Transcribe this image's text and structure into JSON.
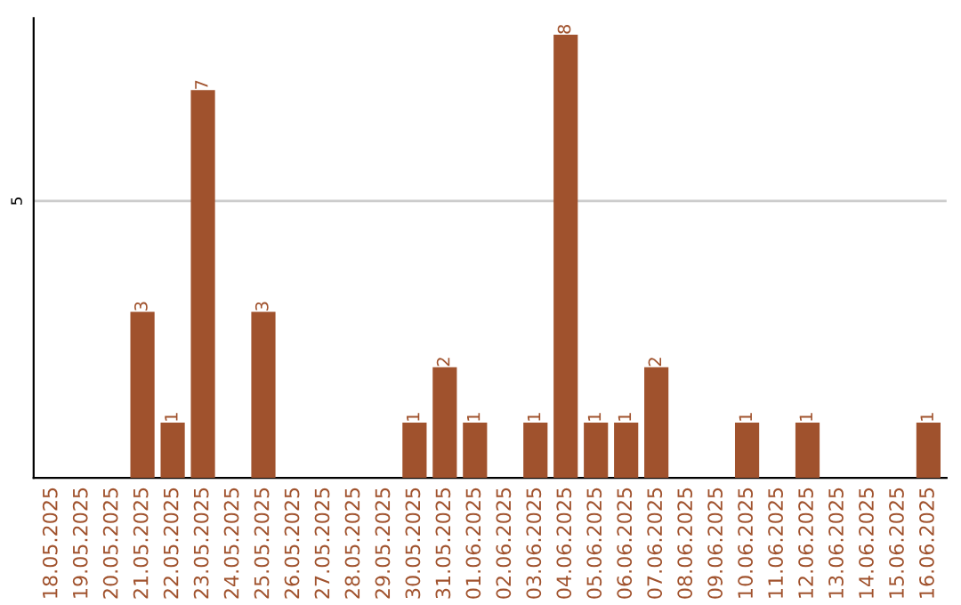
{
  "chart_data": {
    "type": "bar",
    "categories": [
      "18.05.2025",
      "19.05.2025",
      "20.05.2025",
      "21.05.2025",
      "22.05.2025",
      "23.05.2025",
      "24.05.2025",
      "25.05.2025",
      "26.05.2025",
      "27.05.2025",
      "28.05.2025",
      "29.05.2025",
      "30.05.2025",
      "31.05.2025",
      "01.06.2025",
      "02.06.2025",
      "03.06.2025",
      "04.06.2025",
      "05.06.2025",
      "06.06.2025",
      "07.06.2025",
      "08.06.2025",
      "09.06.2025",
      "10.06.2025",
      "11.06.2025",
      "12.06.2025",
      "13.06.2025",
      "14.06.2025",
      "15.06.2025",
      "16.06.2025"
    ],
    "values": [
      0,
      0,
      0,
      3,
      1,
      7,
      0,
      3,
      0,
      0,
      0,
      0,
      1,
      2,
      1,
      0,
      1,
      8,
      1,
      1,
      2,
      0,
      0,
      1,
      0,
      1,
      0,
      0,
      0,
      1
    ],
    "value_labels": [
      null,
      null,
      null,
      "3",
      "1",
      "7",
      null,
      "3",
      null,
      null,
      null,
      null,
      "1",
      "2",
      "1",
      null,
      "1",
      "8",
      "1",
      "1",
      "2",
      null,
      null,
      "1",
      null,
      "1",
      null,
      null,
      null,
      "1"
    ],
    "color": "#a0522d",
    "ylim": [
      0,
      8.3
    ],
    "yticks": [
      5
    ],
    "grid": "y"
  }
}
